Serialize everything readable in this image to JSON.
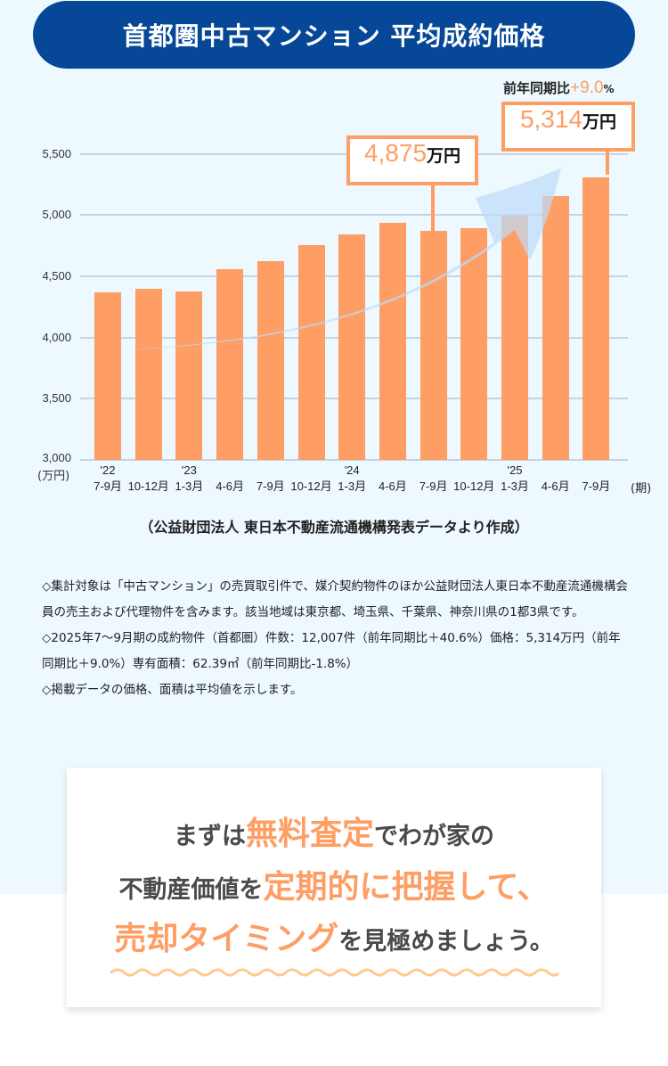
{
  "header": {
    "title": "首都圏中古マンション 平均成約価格"
  },
  "chart_data": {
    "type": "bar",
    "title": "首都圏中古マンション 平均成約価格",
    "ylabel": "(万円)",
    "xlabel": "(期)",
    "ylim": [
      3000,
      5500
    ],
    "yticks": [
      5500,
      5000,
      4500,
      4000,
      3500,
      3000
    ],
    "ytick_labels": [
      "5,500",
      "5,000",
      "4,500",
      "4,000",
      "3,500",
      "3,000"
    ],
    "grid": true,
    "categories": [
      "'22 7-9月",
      "10-12月",
      "'23 1-3月",
      "4-6月",
      "7-9月",
      "10-12月",
      "'24 1-3月",
      "4-6月",
      "7-9月",
      "10-12月",
      "'25 1-3月",
      "4-6月",
      "7-9月"
    ],
    "values": [
      4370,
      4400,
      4380,
      4560,
      4630,
      4760,
      4850,
      4940,
      4875,
      4900,
      5000,
      5160,
      5314
    ],
    "color": "#fe9e64",
    "annotations": [
      {
        "category_index": 8,
        "value_label": "4,875",
        "unit": "万円"
      },
      {
        "category_index": 12,
        "value_label": "5,314",
        "unit": "万円",
        "note": "前年同期比+9.0%"
      }
    ],
    "trend_arrow": "upward light-blue arrow"
  },
  "axis": {
    "y_unit": "(万円)",
    "x_unit": "(期)",
    "yticks": [
      "5,500",
      "5,000",
      "4,500",
      "4,000",
      "3,500",
      "3,000"
    ]
  },
  "xlabels": [
    {
      "year": "'22",
      "period": "7-9月"
    },
    {
      "year": "",
      "period": "10-12月"
    },
    {
      "year": "'23",
      "period": "1-3月"
    },
    {
      "year": "",
      "period": "4-6月"
    },
    {
      "year": "",
      "period": "7-9月"
    },
    {
      "year": "",
      "period": "10-12月"
    },
    {
      "year": "'24",
      "period": "1-3月"
    },
    {
      "year": "",
      "period": "4-6月"
    },
    {
      "year": "",
      "period": "7-9月"
    },
    {
      "year": "",
      "period": "10-12月"
    },
    {
      "year": "'25",
      "period": "1-3月"
    },
    {
      "year": "",
      "period": "4-6月"
    },
    {
      "year": "",
      "period": "7-9月"
    }
  ],
  "callouts": {
    "mid": {
      "value": "4,875",
      "unit": "万円"
    },
    "latest": {
      "value": "5,314",
      "unit": "万円"
    },
    "yoy_label": "前年同期比",
    "yoy_value": "+9.0",
    "yoy_pct": "%"
  },
  "source": "（公益財団法人 東日本不動産流通機構発表データより作成）",
  "notes": [
    "◇集計対象は「中古マンション」の売買取引件で、媒介契約物件のほか公益財団法人東日本不動産流通機構会員の売主および代理物件を含みます。該当地域は東京都、埼玉県、千葉県、神奈川県の1都3県です。",
    "◇2025年7～9月期の成約物件（首都圏）件数：12,007件（前年同期比＋40.6%）価格：5,314万円（前年同期比＋9.0%）専有面積：62.39㎡（前年同期比-1.8%）",
    "◇掲載データの価格、面積は平均値を示します。"
  ],
  "cta": {
    "line1": {
      "pre": "まずは",
      "hl": "無料査定",
      "post": "でわが家の"
    },
    "line2": {
      "pre": "不動産価値を",
      "hl": "定期的に把握して、",
      "post": ""
    },
    "line3": {
      "pre": "",
      "hl": "売却タイミング",
      "post": "を見極めましょう。"
    }
  },
  "colors": {
    "title_bg": "#064897",
    "bar": "#fe9e64",
    "page_bg": "#edf9fe",
    "accent": "#fe9e64",
    "wave": "#ffc98f"
  }
}
